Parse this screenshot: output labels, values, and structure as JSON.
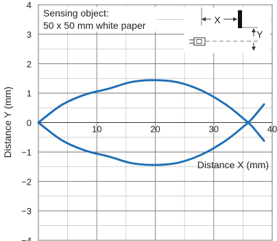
{
  "chart_data": {
    "type": "line",
    "title": "",
    "xlabel": "Distance X (mm)",
    "ylabel": "Distance Y (mm)",
    "xlim": [
      0,
      40
    ],
    "ylim": [
      -4,
      4
    ],
    "x_ticks": [
      10,
      20,
      30,
      40
    ],
    "y_ticks": [
      4,
      3,
      2,
      1,
      0,
      -1,
      -2,
      -3,
      -4
    ],
    "x_tick_labels": [
      "10",
      "20",
      "30",
      "40"
    ],
    "y_tick_labels": [
      "4",
      "3",
      "2",
      "1",
      "0",
      "−1",
      "−2",
      "−3",
      "−4"
    ],
    "grid": true,
    "legend": "none",
    "annotation": {
      "line1": "Sensing object:",
      "line2": "50 x 50 mm white paper"
    },
    "inset": {
      "x_label": "X",
      "y_label": "Y"
    },
    "series": [
      {
        "color": "#1f6fb5",
        "x": [
          0,
          4,
          8,
          12,
          16,
          20,
          24,
          28,
          32,
          35,
          36.5,
          38.6
        ],
        "y": [
          0,
          0.6,
          0.95,
          1.15,
          1.38,
          1.44,
          1.36,
          1.08,
          0.62,
          0.15,
          -0.12,
          -0.62
        ]
      },
      {
        "color": "#1f6fb5",
        "x": [
          0,
          4,
          8,
          12,
          16,
          20,
          24,
          28,
          32,
          35,
          36.5,
          38.6
        ],
        "y": [
          0,
          -0.6,
          -0.95,
          -1.15,
          -1.38,
          -1.44,
          -1.36,
          -1.08,
          -0.62,
          -0.15,
          0.12,
          0.62
        ]
      }
    ]
  }
}
